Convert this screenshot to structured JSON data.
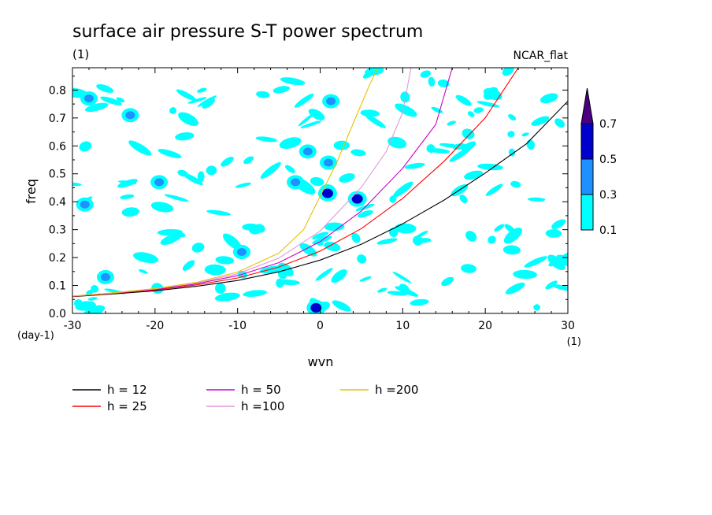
{
  "chart_data": {
    "type": "heatmap",
    "title": "surface air pressure S-T power spectrum",
    "subtitle": "(1)",
    "source_label": "NCAR_flat",
    "xlabel": "wvn",
    "ylabel": "freq",
    "x_unit": "(1)",
    "y_unit": "(day-1)",
    "xlim": [
      -30,
      30
    ],
    "ylim": [
      0,
      0.88
    ],
    "x_ticks": [
      "-30",
      "-20",
      "-10",
      "0",
      "10",
      "20",
      "30"
    ],
    "x_tick_values": [
      -30,
      -20,
      -10,
      0,
      10,
      20,
      30
    ],
    "y_ticks": [
      "0.0",
      "0.1",
      "0.2",
      "0.3",
      "0.4",
      "0.5",
      "0.6",
      "0.7",
      "0.8"
    ],
    "y_tick_values": [
      0,
      0.1,
      0.2,
      0.3,
      0.4,
      0.5,
      0.6,
      0.7,
      0.8
    ],
    "colorbar": {
      "levels": [
        "0.1",
        "0.3",
        "0.5",
        "0.7"
      ],
      "level_values": [
        0.1,
        0.3,
        0.5,
        0.7
      ],
      "colors": [
        "#00ffff",
        "#1e90ff",
        "#0000cd",
        "#4b0082"
      ]
    },
    "dispersion_curves": [
      {
        "name": "h = 12",
        "color": "#000000",
        "points": [
          [
            -30,
            0.06
          ],
          [
            -25,
            0.07
          ],
          [
            -20,
            0.081
          ],
          [
            -15,
            0.097
          ],
          [
            -10,
            0.118
          ],
          [
            -5,
            0.149
          ],
          [
            0,
            0.191
          ],
          [
            5,
            0.248
          ],
          [
            10,
            0.321
          ],
          [
            15,
            0.406
          ],
          [
            20,
            0.503
          ],
          [
            25,
            0.608
          ],
          [
            30,
            0.76
          ]
        ]
      },
      {
        "name": "h = 25",
        "color": "#ff0000",
        "points": [
          [
            -30,
            0.061
          ],
          [
            -25,
            0.072
          ],
          [
            -20,
            0.084
          ],
          [
            -15,
            0.102
          ],
          [
            -10,
            0.127
          ],
          [
            -5,
            0.166
          ],
          [
            0,
            0.223
          ],
          [
            5,
            0.304
          ],
          [
            10,
            0.412
          ],
          [
            15,
            0.545
          ],
          [
            20,
            0.701
          ],
          [
            24,
            0.88
          ]
        ]
      },
      {
        "name": "h = 50",
        "color": "#cc00cc",
        "points": [
          [
            -30,
            0.062
          ],
          [
            -25,
            0.073
          ],
          [
            -20,
            0.086
          ],
          [
            -15,
            0.106
          ],
          [
            -10,
            0.135
          ],
          [
            -5,
            0.182
          ],
          [
            0,
            0.257
          ],
          [
            5,
            0.367
          ],
          [
            10,
            0.52
          ],
          [
            14,
            0.677
          ],
          [
            16,
            0.88
          ]
        ]
      },
      {
        "name": "h =100",
        "color": "#dd99dd",
        "points": [
          [
            -30,
            0.062
          ],
          [
            -25,
            0.073
          ],
          [
            -20,
            0.088
          ],
          [
            -15,
            0.109
          ],
          [
            -10,
            0.142
          ],
          [
            -5,
            0.198
          ],
          [
            0,
            0.295
          ],
          [
            5,
            0.452
          ],
          [
            8,
            0.58
          ],
          [
            10,
            0.72
          ],
          [
            11,
            0.88
          ]
        ]
      },
      {
        "name": "h =200",
        "color": "#e6c200",
        "points": [
          [
            -30,
            0.062
          ],
          [
            -25,
            0.074
          ],
          [
            -20,
            0.089
          ],
          [
            -15,
            0.111
          ],
          [
            -10,
            0.148
          ],
          [
            -5,
            0.216
          ],
          [
            -2,
            0.3
          ],
          [
            0,
            0.42
          ],
          [
            2,
            0.54
          ],
          [
            4,
            0.68
          ],
          [
            6,
            0.82
          ],
          [
            7,
            0.88
          ]
        ]
      }
    ],
    "contour_patches": [
      {
        "x": 0.9,
        "y": 0.44,
        "level": 0.7
      },
      {
        "x": 0.9,
        "y": 0.43,
        "level": 0.5
      },
      {
        "x": -0.5,
        "y": 0.02,
        "level": 0.5
      },
      {
        "x": 4.5,
        "y": 0.41,
        "level": 0.5
      },
      {
        "x": 1.3,
        "y": 0.76,
        "level": 0.3
      },
      {
        "x": -23,
        "y": 0.71,
        "level": 0.3
      },
      {
        "x": -19.5,
        "y": 0.47,
        "level": 0.3
      },
      {
        "x": -1.5,
        "y": 0.58,
        "level": 0.3
      },
      {
        "x": 1.0,
        "y": 0.54,
        "level": 0.3
      },
      {
        "x": -3.0,
        "y": 0.47,
        "level": 0.3
      },
      {
        "x": -9.5,
        "y": 0.22,
        "level": 0.3
      },
      {
        "x": -28.5,
        "y": 0.39,
        "level": 0.3
      },
      {
        "x": -28.0,
        "y": 0.77,
        "level": 0.3
      },
      {
        "x": -26.0,
        "y": 0.13,
        "level": 0.3
      }
    ]
  }
}
